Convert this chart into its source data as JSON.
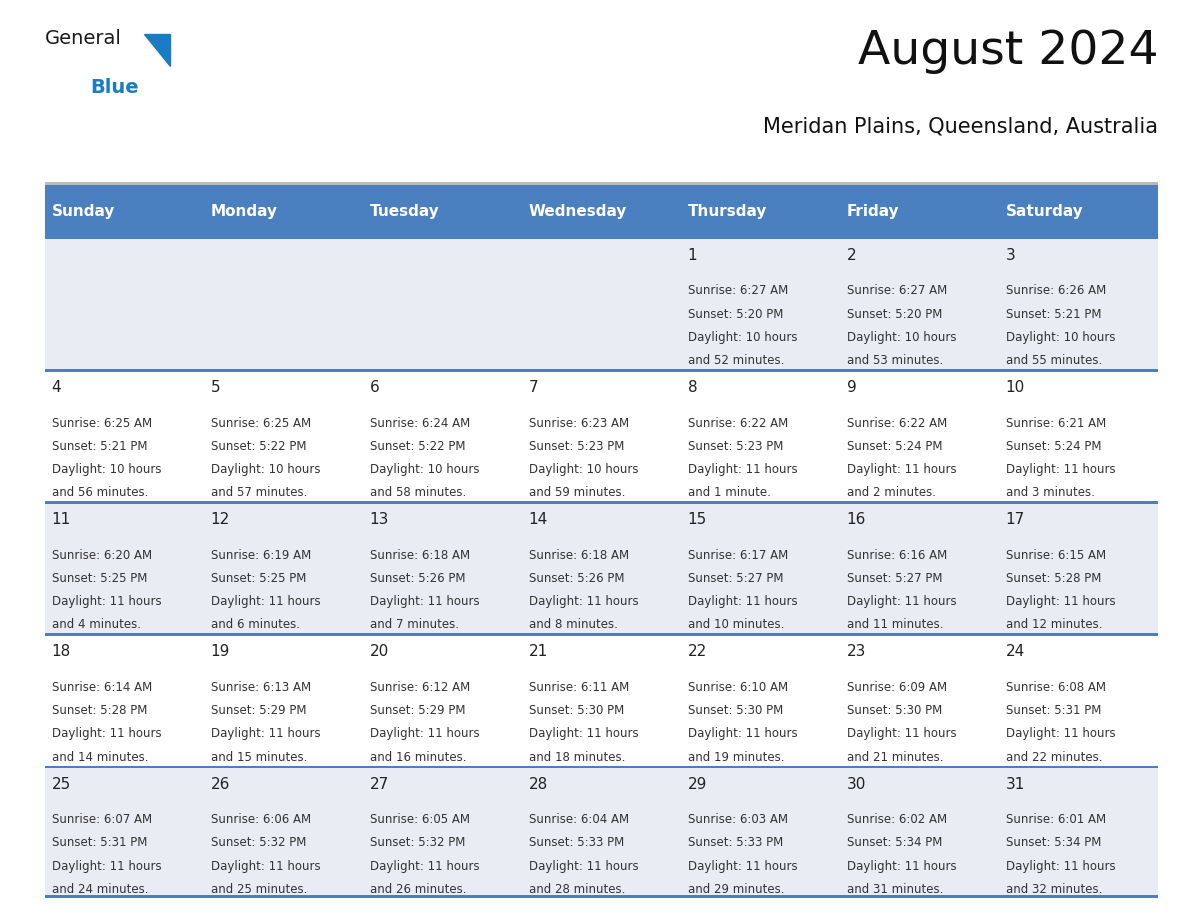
{
  "title": "August 2024",
  "subtitle": "Meridan Plains, Queensland, Australia",
  "days_of_week": [
    "Sunday",
    "Monday",
    "Tuesday",
    "Wednesday",
    "Thursday",
    "Friday",
    "Saturday"
  ],
  "header_bg": "#4A7FC0",
  "header_text": "#FFFFFF",
  "row_bg": [
    "#EAECF4",
    "#FFFFFF",
    "#EAECF4",
    "#FFFFFF",
    "#EAECF4"
  ],
  "cell_text_color": "#333333",
  "day_num_color": "#222222",
  "border_color": "#4A7FC0",
  "logo_general_color": "#1a1a1a",
  "logo_blue_color": "#1a7cc4",
  "calendar": [
    [
      {
        "day": "",
        "sunrise": "",
        "sunset": "",
        "daylight": ""
      },
      {
        "day": "",
        "sunrise": "",
        "sunset": "",
        "daylight": ""
      },
      {
        "day": "",
        "sunrise": "",
        "sunset": "",
        "daylight": ""
      },
      {
        "day": "",
        "sunrise": "",
        "sunset": "",
        "daylight": ""
      },
      {
        "day": "1",
        "sunrise": "6:27 AM",
        "sunset": "5:20 PM",
        "daylight": "10 hours and 52 minutes."
      },
      {
        "day": "2",
        "sunrise": "6:27 AM",
        "sunset": "5:20 PM",
        "daylight": "10 hours and 53 minutes."
      },
      {
        "day": "3",
        "sunrise": "6:26 AM",
        "sunset": "5:21 PM",
        "daylight": "10 hours and 55 minutes."
      }
    ],
    [
      {
        "day": "4",
        "sunrise": "6:25 AM",
        "sunset": "5:21 PM",
        "daylight": "10 hours and 56 minutes."
      },
      {
        "day": "5",
        "sunrise": "6:25 AM",
        "sunset": "5:22 PM",
        "daylight": "10 hours and 57 minutes."
      },
      {
        "day": "6",
        "sunrise": "6:24 AM",
        "sunset": "5:22 PM",
        "daylight": "10 hours and 58 minutes."
      },
      {
        "day": "7",
        "sunrise": "6:23 AM",
        "sunset": "5:23 PM",
        "daylight": "10 hours and 59 minutes."
      },
      {
        "day": "8",
        "sunrise": "6:22 AM",
        "sunset": "5:23 PM",
        "daylight": "11 hours and 1 minute."
      },
      {
        "day": "9",
        "sunrise": "6:22 AM",
        "sunset": "5:24 PM",
        "daylight": "11 hours and 2 minutes."
      },
      {
        "day": "10",
        "sunrise": "6:21 AM",
        "sunset": "5:24 PM",
        "daylight": "11 hours and 3 minutes."
      }
    ],
    [
      {
        "day": "11",
        "sunrise": "6:20 AM",
        "sunset": "5:25 PM",
        "daylight": "11 hours and 4 minutes."
      },
      {
        "day": "12",
        "sunrise": "6:19 AM",
        "sunset": "5:25 PM",
        "daylight": "11 hours and 6 minutes."
      },
      {
        "day": "13",
        "sunrise": "6:18 AM",
        "sunset": "5:26 PM",
        "daylight": "11 hours and 7 minutes."
      },
      {
        "day": "14",
        "sunrise": "6:18 AM",
        "sunset": "5:26 PM",
        "daylight": "11 hours and 8 minutes."
      },
      {
        "day": "15",
        "sunrise": "6:17 AM",
        "sunset": "5:27 PM",
        "daylight": "11 hours and 10 minutes."
      },
      {
        "day": "16",
        "sunrise": "6:16 AM",
        "sunset": "5:27 PM",
        "daylight": "11 hours and 11 minutes."
      },
      {
        "day": "17",
        "sunrise": "6:15 AM",
        "sunset": "5:28 PM",
        "daylight": "11 hours and 12 minutes."
      }
    ],
    [
      {
        "day": "18",
        "sunrise": "6:14 AM",
        "sunset": "5:28 PM",
        "daylight": "11 hours and 14 minutes."
      },
      {
        "day": "19",
        "sunrise": "6:13 AM",
        "sunset": "5:29 PM",
        "daylight": "11 hours and 15 minutes."
      },
      {
        "day": "20",
        "sunrise": "6:12 AM",
        "sunset": "5:29 PM",
        "daylight": "11 hours and 16 minutes."
      },
      {
        "day": "21",
        "sunrise": "6:11 AM",
        "sunset": "5:30 PM",
        "daylight": "11 hours and 18 minutes."
      },
      {
        "day": "22",
        "sunrise": "6:10 AM",
        "sunset": "5:30 PM",
        "daylight": "11 hours and 19 minutes."
      },
      {
        "day": "23",
        "sunrise": "6:09 AM",
        "sunset": "5:30 PM",
        "daylight": "11 hours and 21 minutes."
      },
      {
        "day": "24",
        "sunrise": "6:08 AM",
        "sunset": "5:31 PM",
        "daylight": "11 hours and 22 minutes."
      }
    ],
    [
      {
        "day": "25",
        "sunrise": "6:07 AM",
        "sunset": "5:31 PM",
        "daylight": "11 hours and 24 minutes."
      },
      {
        "day": "26",
        "sunrise": "6:06 AM",
        "sunset": "5:32 PM",
        "daylight": "11 hours and 25 minutes."
      },
      {
        "day": "27",
        "sunrise": "6:05 AM",
        "sunset": "5:32 PM",
        "daylight": "11 hours and 26 minutes."
      },
      {
        "day": "28",
        "sunrise": "6:04 AM",
        "sunset": "5:33 PM",
        "daylight": "11 hours and 28 minutes."
      },
      {
        "day": "29",
        "sunrise": "6:03 AM",
        "sunset": "5:33 PM",
        "daylight": "11 hours and 29 minutes."
      },
      {
        "day": "30",
        "sunrise": "6:02 AM",
        "sunset": "5:34 PM",
        "daylight": "11 hours and 31 minutes."
      },
      {
        "day": "31",
        "sunrise": "6:01 AM",
        "sunset": "5:34 PM",
        "daylight": "11 hours and 32 minutes."
      }
    ]
  ]
}
